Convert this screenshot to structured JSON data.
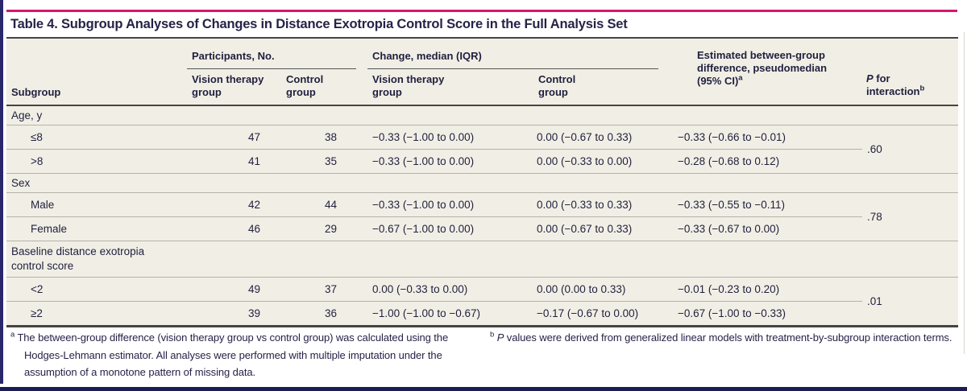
{
  "title": "Table 4. Subgroup Analyses of Changes in Distance Exotropia Control Score in the Full Analysis Set",
  "colors": {
    "accent_pink": "#d4196e",
    "edge_navy": "#29286a",
    "table_background": "#f1efe5",
    "text": "#22203f",
    "rule_dark": "#454441",
    "rule_light": "#b5b3a9"
  },
  "header": {
    "subgroup": "Subgroup",
    "participants_spanner": "Participants, No.",
    "change_spanner": "Change, median (IQR)",
    "participants_vt": "Vision therapy group",
    "participants_control": "Control group",
    "change_vt": "Vision therapy group",
    "change_control": "Control group",
    "difference": "Estimated between-group difference, pseudomedian (95% CI)",
    "difference_footnote_marker": "a",
    "p_italic": "P",
    "p_rest": " for interaction",
    "p_footnote_marker": "b"
  },
  "sections": [
    {
      "label": "Age, y",
      "p": ".60",
      "rows": [
        {
          "label": "≤8",
          "vt_n": "47",
          "c_n": "38",
          "vt_change": "−0.33 (−1.00 to 0.00)",
          "c_change": "0.00 (−0.67 to 0.33)",
          "diff": "−0.33 (−0.66 to −0.01)"
        },
        {
          "label": ">8",
          "vt_n": "41",
          "c_n": "35",
          "vt_change": "−0.33 (−1.00 to 0.00)",
          "c_change": "0.00 (−0.33 to 0.00)",
          "diff": "−0.28 (−0.68 to 0.12)"
        }
      ]
    },
    {
      "label": "Sex",
      "p": ".78",
      "rows": [
        {
          "label": "Male",
          "vt_n": "42",
          "c_n": "44",
          "vt_change": "−0.33 (−1.00 to 0.00)",
          "c_change": "0.00 (−0.33 to 0.33)",
          "diff": "−0.33 (−0.55 to −0.11)"
        },
        {
          "label": "Female",
          "vt_n": "46",
          "c_n": "29",
          "vt_change": "−0.67 (−1.00 to 0.00)",
          "c_change": "0.00 (−0.67 to 0.33)",
          "diff": "−0.33 (−0.67 to 0.00)"
        }
      ]
    },
    {
      "label": "Baseline distance exotropia control score",
      "p": ".01",
      "rows": [
        {
          "label": "<2",
          "vt_n": "49",
          "c_n": "37",
          "vt_change": "0.00 (−0.33 to 0.00)",
          "c_change": "0.00 (0.00 to 0.33)",
          "diff": "−0.01 (−0.23 to 0.20)"
        },
        {
          "label": "≥2",
          "vt_n": "39",
          "c_n": "36",
          "vt_change": "−1.00 (−1.00 to −0.67)",
          "c_change": "−0.17 (−0.67 to 0.00)",
          "diff": "−0.67 (−1.00 to −0.33)"
        }
      ]
    }
  ],
  "footnotes": {
    "a_marker": "a",
    "a_text": " The between-group difference (vision therapy group vs control group) was calculated using the Hodges-Lehmann estimator. All analyses were performed with multiple imputation under the assumption of a monotone pattern of missing data.",
    "b_marker": "b",
    "b_italic": " P",
    "b_text": " values were derived from generalized linear models with treatment-by-subgroup interaction terms."
  }
}
